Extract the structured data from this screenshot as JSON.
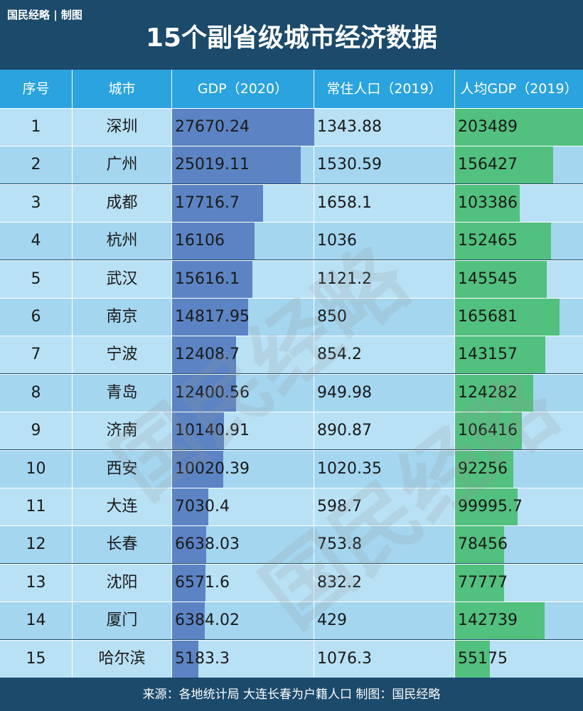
{
  "brand": "国民经略 | 制图",
  "title": "15个副省级城市经济数据",
  "footer": "来源：各地统计局 大连长春为户籍人口 制图：国民经略",
  "watermark": "国民经略",
  "colors": {
    "header": "#1b4a6b",
    "header_row": "#2aa3df",
    "gdp_bar": "#5c84c4",
    "per_capita_bar": "#52c07e"
  },
  "chart_data": {
    "type": "table",
    "columns": [
      "序号",
      "城市",
      "GDP（2020）",
      "常住人口（2019）",
      "人均GDP（2019）"
    ],
    "rows": [
      {
        "rank": "1",
        "city": "深圳",
        "gdp": "27670.24",
        "population": "1343.88",
        "per_capita": "203489"
      },
      {
        "rank": "2",
        "city": "广州",
        "gdp": "25019.11",
        "population": "1530.59",
        "per_capita": "156427"
      },
      {
        "rank": "3",
        "city": "成都",
        "gdp": "17716.7",
        "population": "1658.1",
        "per_capita": "103386"
      },
      {
        "rank": "4",
        "city": "杭州",
        "gdp": "16106",
        "population": "1036",
        "per_capita": "152465"
      },
      {
        "rank": "5",
        "city": "武汉",
        "gdp": "15616.1",
        "population": "1121.2",
        "per_capita": "145545"
      },
      {
        "rank": "6",
        "city": "南京",
        "gdp": "14817.95",
        "population": "850",
        "per_capita": "165681"
      },
      {
        "rank": "7",
        "city": "宁波",
        "gdp": "12408.7",
        "population": "854.2",
        "per_capita": "143157"
      },
      {
        "rank": "8",
        "city": "青岛",
        "gdp": "12400.56",
        "population": "949.98",
        "per_capita": "124282"
      },
      {
        "rank": "9",
        "city": "济南",
        "gdp": "10140.91",
        "population": "890.87",
        "per_capita": "106416"
      },
      {
        "rank": "10",
        "city": "西安",
        "gdp": "10020.39",
        "population": "1020.35",
        "per_capita": "92256"
      },
      {
        "rank": "11",
        "city": "大连",
        "gdp": "7030.4",
        "population": "598.7",
        "per_capita": "99995.7"
      },
      {
        "rank": "12",
        "city": "长春",
        "gdp": "6638.03",
        "population": "753.8",
        "per_capita": "78456"
      },
      {
        "rank": "13",
        "city": "沈阳",
        "gdp": "6571.6",
        "population": "832.2",
        "per_capita": "77777"
      },
      {
        "rank": "14",
        "city": "厦门",
        "gdp": "6384.02",
        "population": "429",
        "per_capita": "142739"
      },
      {
        "rank": "15",
        "city": "哈尔滨",
        "gdp": "5183.3",
        "population": "1076.3",
        "per_capita": "55175"
      }
    ]
  }
}
